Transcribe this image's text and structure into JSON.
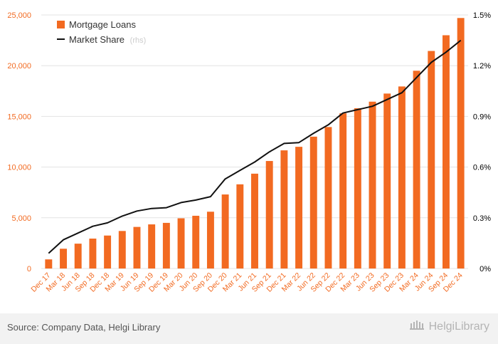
{
  "chart_data": {
    "type": "bar",
    "categories": [
      "Dec 17",
      "Mar 18",
      "Jun 18",
      "Sep 18",
      "Dec 18",
      "Mar 19",
      "Jun 19",
      "Sep 19",
      "Dec 19",
      "Mar 20",
      "Jun 20",
      "Sep 20",
      "Dec 20",
      "Mar 21",
      "Jun 21",
      "Sep 21",
      "Dec 21",
      "Mar 22",
      "Jun 22",
      "Sep 22",
      "Dec 22",
      "Mar 23",
      "Jun 23",
      "Sep 23",
      "Dec 23",
      "Mar 24",
      "Jun 24",
      "Sep 24",
      "Dec 24"
    ],
    "series": [
      {
        "name": "Mortgage Loans",
        "kind": "bar",
        "axis": "left",
        "color": "#f26a21",
        "values": [
          900,
          1950,
          2450,
          2950,
          3250,
          3700,
          4100,
          4350,
          4500,
          4950,
          5200,
          5600,
          7300,
          8300,
          9350,
          10600,
          11650,
          12000,
          13000,
          13950,
          15300,
          15800,
          16450,
          17250,
          17950,
          19500,
          21450,
          23000,
          24700
        ]
      },
      {
        "name": "Market Share",
        "kind": "line",
        "axis": "right",
        "color": "#111111",
        "values": [
          0.09,
          0.17,
          0.21,
          0.25,
          0.27,
          0.31,
          0.34,
          0.355,
          0.36,
          0.39,
          0.405,
          0.425,
          0.53,
          0.58,
          0.63,
          0.69,
          0.74,
          0.745,
          0.8,
          0.85,
          0.92,
          0.94,
          0.96,
          1.0,
          1.04,
          1.13,
          1.22,
          1.28,
          1.35
        ]
      }
    ],
    "legend": {
      "position": "top-left",
      "items": [
        {
          "label": "Mortgage Loans",
          "suffix": ""
        },
        {
          "label": "Market Share",
          "suffix": "(rhs)"
        }
      ]
    },
    "y_left": {
      "ylim": [
        0,
        25000
      ],
      "ticks": [
        0,
        5000,
        10000,
        15000,
        20000,
        25000
      ],
      "tick_labels": [
        "0",
        "5,000",
        "10,000",
        "15,000",
        "20,000",
        "25,000"
      ]
    },
    "y_right": {
      "ylim": [
        0,
        1.5
      ],
      "ticks": [
        0,
        0.3,
        0.6,
        0.9,
        1.2,
        1.5
      ],
      "tick_labels": [
        "0%",
        "0.3%",
        "0.6%",
        "0.9%",
        "1.2%",
        "1.5%"
      ]
    },
    "grid": true
  },
  "footer": {
    "source": "Source: Company Data, Helgi Library",
    "logo_text": "HelgiLibrary"
  }
}
